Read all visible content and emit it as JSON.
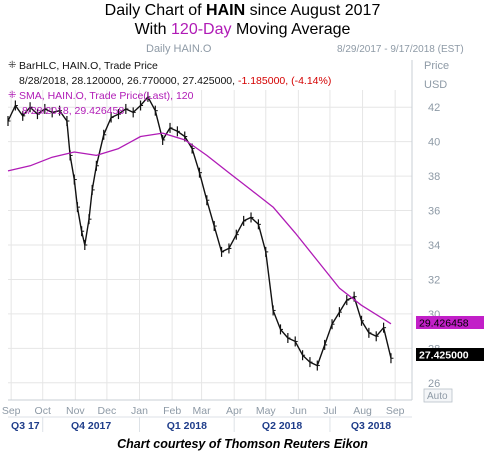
{
  "title": {
    "line1_pre": "Daily Chart of ",
    "ticker": "HAIN",
    "line1_post": " since August 2017",
    "line2_pre": "With ",
    "line2_highlight": "120-Day",
    "line2_post": " Moving Average"
  },
  "header": {
    "panel_title": "Daily HAIN.O",
    "date_range": "8/29/2017 - 9/17/2018 (EST)",
    "price_label": "Price",
    "currency_label": "USD"
  },
  "legend": {
    "bar_series": "BarHLC, HAIN.O, Trade Price",
    "bar_values_pre": "8/28/2018, 28.120000, 26.770000, 27.425000, ",
    "bar_change": "-1.185000, (-4.14%)",
    "sma_series": "SMA, HAIN.O, Trade Price(Last),  120",
    "sma_values": "8/28/2018, 29.426458"
  },
  "caption": "Chart courtesy of Thomson Reuters Eikon",
  "auto_label": "Auto",
  "colors": {
    "price": "#111111",
    "sma": "#b01bb6",
    "change": "#d40000",
    "label_bg_price": "#000000",
    "label_bg_sma": "#c21fc8",
    "axis_text": "#8e9aa6",
    "grid": "#e6e6e6",
    "quarter_text": "#1f3d8a"
  },
  "chart_data": {
    "type": "line",
    "title": "Daily Chart of HAIN since August 2017 With 120-Day Moving Average",
    "ylabel": "Price USD",
    "ylim": [
      25,
      43
    ],
    "y_ticks": [
      26,
      28,
      30,
      32,
      34,
      36,
      38,
      40,
      42
    ],
    "months": [
      {
        "label": "Sep",
        "date": "2017-09-01"
      },
      {
        "label": "Oct",
        "date": "2017-10-01"
      },
      {
        "label": "Nov",
        "date": "2017-11-01"
      },
      {
        "label": "Dec",
        "date": "2017-12-01"
      },
      {
        "label": "Jan",
        "date": "2018-01-01"
      },
      {
        "label": "Feb",
        "date": "2018-02-01"
      },
      {
        "label": "Mar",
        "date": "2018-03-01"
      },
      {
        "label": "Apr",
        "date": "2018-04-01"
      },
      {
        "label": "May",
        "date": "2018-05-01"
      },
      {
        "label": "Jun",
        "date": "2018-06-01"
      },
      {
        "label": "Jul",
        "date": "2018-07-01"
      },
      {
        "label": "Aug",
        "date": "2018-08-01"
      },
      {
        "label": "Sep",
        "date": "2018-09-01"
      }
    ],
    "quarters": [
      {
        "label": "Q3 17",
        "start": "2017-08-29",
        "end": "2017-10-01"
      },
      {
        "label": "Q4 2017",
        "start": "2017-10-01",
        "end": "2018-01-01"
      },
      {
        "label": "Q1 2018",
        "start": "2018-01-01",
        "end": "2018-04-01"
      },
      {
        "label": "Q2 2018",
        "start": "2018-04-01",
        "end": "2018-07-01"
      },
      {
        "label": "Q3 2018",
        "start": "2018-07-01",
        "end": "2018-09-17"
      }
    ],
    "series": [
      {
        "name": "BarHLC, HAIN.O, Trade Price",
        "x": [
          "2017-08-29",
          "2017-09-05",
          "2017-09-12",
          "2017-09-19",
          "2017-09-26",
          "2017-10-03",
          "2017-10-10",
          "2017-10-17",
          "2017-10-24",
          "2017-10-27",
          "2017-10-31",
          "2017-11-03",
          "2017-11-07",
          "2017-11-10",
          "2017-11-14",
          "2017-11-17",
          "2017-11-21",
          "2017-11-28",
          "2017-12-05",
          "2017-12-12",
          "2017-12-19",
          "2017-12-26",
          "2018-01-02",
          "2018-01-09",
          "2018-01-16",
          "2018-01-23",
          "2018-01-30",
          "2018-02-06",
          "2018-02-13",
          "2018-02-20",
          "2018-02-27",
          "2018-03-06",
          "2018-03-13",
          "2018-03-20",
          "2018-03-27",
          "2018-04-03",
          "2018-04-10",
          "2018-04-17",
          "2018-04-24",
          "2018-05-01",
          "2018-05-08",
          "2018-05-15",
          "2018-05-22",
          "2018-05-29",
          "2018-06-05",
          "2018-06-12",
          "2018-06-19",
          "2018-06-26",
          "2018-07-03",
          "2018-07-10",
          "2018-07-17",
          "2018-07-24",
          "2018-07-31",
          "2018-08-07",
          "2018-08-14",
          "2018-08-21",
          "2018-08-28"
        ],
        "values": [
          41.2,
          42.1,
          41.5,
          42.0,
          41.6,
          41.9,
          41.7,
          41.8,
          41.2,
          39.2,
          37.8,
          36.2,
          34.8,
          34.0,
          35.5,
          37.2,
          38.6,
          40.4,
          41.4,
          41.6,
          41.9,
          41.7,
          42.1,
          42.6,
          41.8,
          40.1,
          40.8,
          40.6,
          40.3,
          39.6,
          38.2,
          36.6,
          35.1,
          33.6,
          33.8,
          34.6,
          35.4,
          35.6,
          35.2,
          33.6,
          30.2,
          29.1,
          28.6,
          28.4,
          27.6,
          27.2,
          27.0,
          28.2,
          29.4,
          30.1,
          30.8,
          31.0,
          29.6,
          28.9,
          28.7,
          29.2,
          27.425
        ]
      },
      {
        "name": "SMA, HAIN.O, Trade Price(Last), 120",
        "x": [
          "2017-08-29",
          "2017-09-19",
          "2017-10-10",
          "2017-10-31",
          "2017-11-21",
          "2017-12-12",
          "2018-01-02",
          "2018-01-23",
          "2018-02-13",
          "2018-03-06",
          "2018-03-27",
          "2018-04-17",
          "2018-05-08",
          "2018-05-29",
          "2018-06-19",
          "2018-07-10",
          "2018-07-31",
          "2018-08-21",
          "2018-08-28"
        ],
        "values": [
          38.3,
          38.6,
          39.1,
          39.4,
          39.2,
          39.6,
          40.3,
          40.5,
          40.1,
          39.2,
          38.2,
          37.2,
          36.2,
          34.7,
          33.1,
          31.5,
          30.5,
          29.7,
          29.426458
        ]
      }
    ],
    "last_values": {
      "price": 27.425,
      "sma": 29.426458
    },
    "last_labels": {
      "price": "27.425000",
      "sma": "29.426458"
    }
  }
}
